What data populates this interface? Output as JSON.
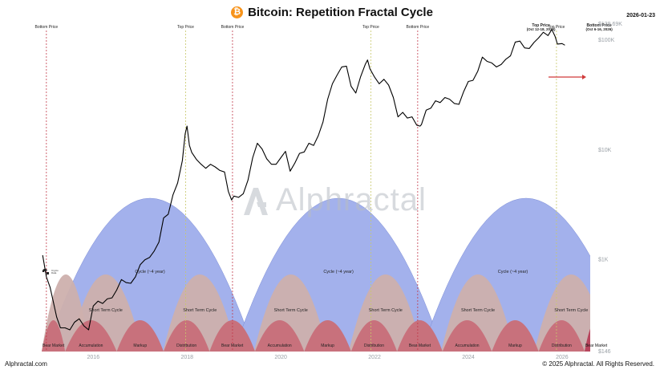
{
  "header": {
    "title": "Bitcoin: Repetition Fractal Cycle",
    "date": "2026-01-23",
    "brand_icon": "bitcoin-icon"
  },
  "watermark": "Alphractal",
  "small_logo": [
    "Crypto",
    "Data"
  ],
  "footer": {
    "left": "Alphractal.com",
    "right": "© 2025 Alphractal. All Rights Reserved."
  },
  "colors": {
    "big_cycle": "#a3b1ec",
    "short_cycle": "#cdb0ad",
    "phase": "#c8717c",
    "bear_highlight": "#b8455d",
    "bottom_line": "#c23a4a",
    "top_line": "#c8c86a",
    "price": "#000000",
    "arrow": "#d03a3a"
  },
  "chart_data": {
    "type": "line",
    "title": "Bitcoin: Repetition Fractal Cycle",
    "yscale": "log",
    "ylim": [
      146,
      140000
    ],
    "xlim": [
      2014.9,
      2026.6
    ],
    "y_ticks": [
      {
        "value": 146,
        "label": "$146"
      },
      {
        "value": 1000,
        "label": "$1K"
      },
      {
        "value": 10000,
        "label": "$10K"
      },
      {
        "value": 100000,
        "label": "$100K"
      },
      {
        "value": 139690,
        "label": "$139.69K"
      }
    ],
    "x_ticks": [
      {
        "value": 2016,
        "label": "2016"
      },
      {
        "value": 2018,
        "label": "2018"
      },
      {
        "value": 2020,
        "label": "2020"
      },
      {
        "value": 2022,
        "label": "2022"
      },
      {
        "value": 2024,
        "label": "2024"
      },
      {
        "value": 2026,
        "label": "2026"
      }
    ],
    "series": [
      {
        "x": [
          2014.92,
          2015.0,
          2015.08,
          2015.15,
          2015.22,
          2015.3,
          2015.4,
          2015.5,
          2015.6,
          2015.7,
          2015.8,
          2015.9,
          2016.0,
          2016.1,
          2016.2,
          2016.3,
          2016.4,
          2016.5,
          2016.6,
          2016.7,
          2016.8,
          2016.9,
          2017.0,
          2017.1,
          2017.2,
          2017.3,
          2017.4,
          2017.5,
          2017.6,
          2017.7,
          2017.8,
          2017.9,
          2017.96,
          2018.0,
          2018.05,
          2018.1,
          2018.2,
          2018.3,
          2018.4,
          2018.5,
          2018.6,
          2018.7,
          2018.8,
          2018.88,
          2018.95,
          2019.0,
          2019.1,
          2019.2,
          2019.3,
          2019.4,
          2019.5,
          2019.6,
          2019.7,
          2019.8,
          2019.9,
          2020.0,
          2020.1,
          2020.2,
          2020.3,
          2020.4,
          2020.5,
          2020.6,
          2020.7,
          2020.8,
          2020.9,
          2021.0,
          2021.1,
          2021.2,
          2021.3,
          2021.4,
          2021.5,
          2021.6,
          2021.7,
          2021.8,
          2021.85,
          2021.9,
          2022.0,
          2022.1,
          2022.2,
          2022.3,
          2022.4,
          2022.5,
          2022.6,
          2022.7,
          2022.8,
          2022.9,
          2022.97,
          2023.0,
          2023.1,
          2023.2,
          2023.3,
          2023.4,
          2023.5,
          2023.6,
          2023.7,
          2023.8,
          2023.9,
          2024.0,
          2024.1,
          2024.2,
          2024.3,
          2024.4,
          2024.5,
          2024.6,
          2024.7,
          2024.8,
          2024.9,
          2025.0,
          2025.1,
          2025.2,
          2025.3,
          2025.4,
          2025.5,
          2025.6,
          2025.7,
          2025.78,
          2025.85,
          2025.9,
          2026.0,
          2026.06
        ],
        "y": [
          1100,
          700,
          560,
          410,
          300,
          240,
          240,
          230,
          270,
          290,
          250,
          230,
          380,
          420,
          400,
          440,
          450,
          530,
          660,
          620,
          610,
          700,
          900,
          1000,
          1050,
          1200,
          1450,
          2400,
          2600,
          3900,
          5000,
          8000,
          14000,
          16500,
          11000,
          9500,
          8200,
          7400,
          6800,
          7400,
          7000,
          6500,
          6300,
          4200,
          3500,
          3800,
          3700,
          4000,
          5300,
          8500,
          11500,
          10200,
          8300,
          7400,
          7400,
          8500,
          9700,
          6400,
          7600,
          9300,
          9600,
          11500,
          11000,
          13500,
          18000,
          29000,
          40000,
          48000,
          57000,
          58000,
          38000,
          33000,
          46000,
          60000,
          66000,
          55000,
          46000,
          40000,
          44000,
          39000,
          30000,
          20000,
          22000,
          19500,
          20000,
          16800,
          16500,
          17000,
          23000,
          24000,
          28000,
          27000,
          30000,
          29000,
          26500,
          26000,
          34000,
          42000,
          43000,
          52000,
          70000,
          64000,
          62000,
          57000,
          60000,
          67000,
          72000,
          96000,
          98000,
          85000,
          84000,
          95000,
          105000,
          118000,
          110000,
          125000,
          108000,
          92000,
          93000,
          90000
        ]
      }
    ],
    "cycle_arches": [
      {
        "label": "Cycle (~4 year)",
        "start": 2014.98,
        "end": 2019.44
      },
      {
        "label": "Cycle (~4 year)",
        "start": 2019.0,
        "end": 2023.46
      },
      {
        "label": "Cycle (~4 year)",
        "start": 2023.0,
        "end": 2027.46
      }
    ],
    "short_arches": [
      {
        "label": "",
        "start": 2014.9,
        "end": 2015.93
      },
      {
        "label": "Short Term Cycle",
        "start": 2015.48,
        "end": 2017.05
      },
      {
        "label": "Short Term Cycle",
        "start": 2017.49,
        "end": 2019.06
      },
      {
        "label": "Short Term Cycle",
        "start": 2019.43,
        "end": 2021.0
      },
      {
        "label": "Short Term Cycle",
        "start": 2021.45,
        "end": 2023.02
      },
      {
        "label": "Short Term Cycle",
        "start": 2023.42,
        "end": 2024.99
      },
      {
        "label": "Short Term Cycle",
        "start": 2025.41,
        "end": 2026.98
      }
    ],
    "phases": [
      {
        "label": "Bear Market",
        "start": 2014.9,
        "end": 2015.4,
        "highlight": false
      },
      {
        "label": "Accumulation",
        "start": 2015.4,
        "end": 2016.5,
        "highlight": false
      },
      {
        "label": "Markup",
        "start": 2016.5,
        "end": 2017.5,
        "highlight": false
      },
      {
        "label": "Distribution",
        "start": 2017.5,
        "end": 2018.48,
        "highlight": false
      },
      {
        "label": "Bear Market",
        "start": 2018.48,
        "end": 2019.45,
        "highlight": false
      },
      {
        "label": "Accumulation",
        "start": 2019.45,
        "end": 2020.5,
        "highlight": false
      },
      {
        "label": "Markup",
        "start": 2020.5,
        "end": 2021.5,
        "highlight": false
      },
      {
        "label": "Distribution",
        "start": 2021.5,
        "end": 2022.48,
        "highlight": false
      },
      {
        "label": "Bear Market",
        "start": 2022.48,
        "end": 2023.45,
        "highlight": false
      },
      {
        "label": "Accumulation",
        "start": 2023.45,
        "end": 2024.5,
        "highlight": false
      },
      {
        "label": "Markup",
        "start": 2024.5,
        "end": 2025.5,
        "highlight": false
      },
      {
        "label": "Distribution",
        "start": 2025.5,
        "end": 2026.48,
        "highlight": false
      },
      {
        "label": "Bear Market",
        "start": 2026.48,
        "end": 2026.98,
        "highlight": true
      }
    ],
    "vlines": [
      {
        "x": 2015.0,
        "label": "Bottom Price",
        "kind": "bottom"
      },
      {
        "x": 2017.97,
        "label": "Top Price",
        "kind": "top"
      },
      {
        "x": 2018.97,
        "label": "Bottom Price",
        "kind": "bottom"
      },
      {
        "x": 2021.92,
        "label": "Top Price",
        "kind": "top"
      },
      {
        "x": 2022.92,
        "label": "Bottom Price",
        "kind": "bottom"
      },
      {
        "x": 2025.88,
        "label": "Top Price",
        "kind": "top"
      },
      {
        "x": 2026.79,
        "label": "Bottom Price",
        "kind": "bottom"
      }
    ],
    "annotations": [
      {
        "x": 2025.55,
        "text": "Top Price",
        "sub": "(Oct 12-18, 2025)"
      },
      {
        "x": 2026.79,
        "text": "Bottom Price",
        "sub": "(Oct 6-16, 2026)"
      }
    ],
    "grid": false,
    "legend": "none"
  }
}
